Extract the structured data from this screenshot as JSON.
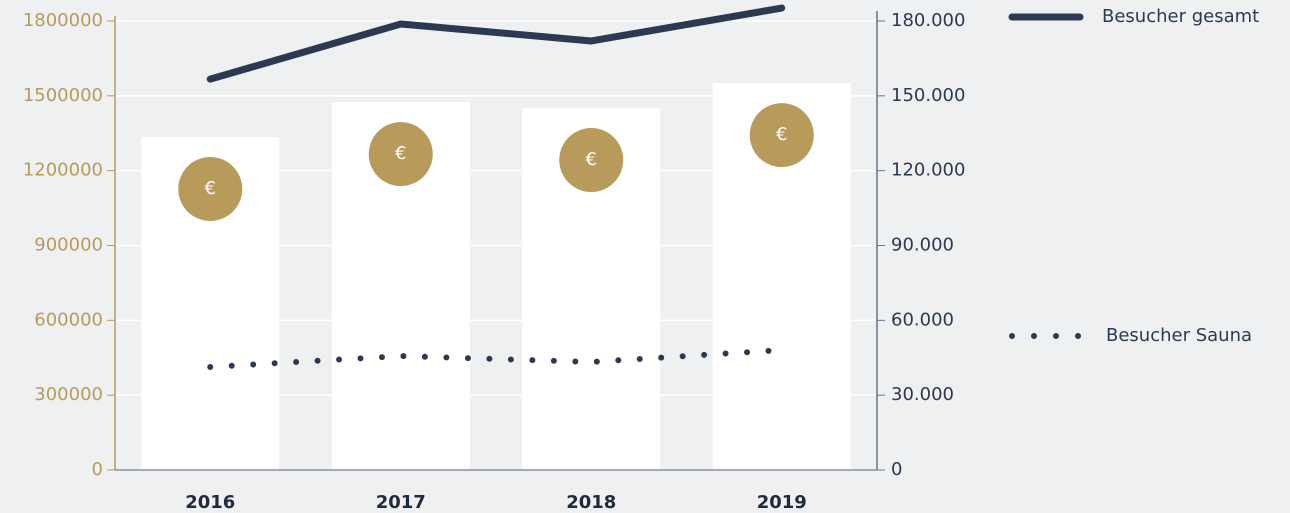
{
  "chart_data": {
    "type": "bar",
    "categories": [
      "2016",
      "2017",
      "2018",
      "2019"
    ],
    "bar_color": "#ffffff",
    "bar_icon": "€",
    "icon_color": "#b89a5a",
    "values": [
      1335000,
      1475000,
      1451000,
      1551000
    ],
    "ylim": [
      0,
      1800000
    ],
    "yticks": [
      0,
      300000,
      600000,
      900000,
      1200000,
      1500000,
      1800000
    ],
    "y2lim": [
      0,
      180000
    ],
    "y2ticks": [
      0,
      {
        "value": 30000,
        "label": "30.000"
      },
      {
        "value": 60000,
        "label": "60.000"
      },
      {
        "value": 90000,
        "label": "90.000"
      },
      {
        "value": 120000,
        "label": "120.000"
      },
      {
        "value": 150000,
        "label": "150.000"
      },
      {
        "value": 180000,
        "label": "180.000"
      }
    ],
    "series": [
      {
        "name": "Besucher gesamt",
        "type": "line",
        "style": "solid",
        "color": "#2b3a52",
        "axis": "y2",
        "values": [
          156700,
          178800,
          172000,
          185200
        ]
      },
      {
        "name": "Besucher Sauna",
        "type": "line",
        "style": "dotted",
        "color": "#2b3a52",
        "axis": "y2",
        "values": [
          41300,
          45700,
          43300,
          48100
        ]
      }
    ],
    "grid": true
  }
}
